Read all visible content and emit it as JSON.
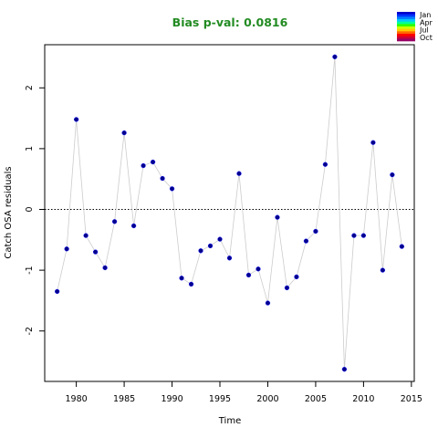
{
  "chart_data": {
    "type": "scatter",
    "title": "Bias p-val: 0.0816",
    "title_color": "#228B22",
    "xlabel": "Time",
    "ylabel": "Catch OSA residuals",
    "xlim": [
      1976.7,
      2015.3
    ],
    "ylim": [
      -2.83,
      2.71
    ],
    "xticks": [
      1980,
      1985,
      1990,
      1995,
      2000,
      2005,
      2010,
      2015
    ],
    "yticks": [
      -2,
      -1,
      0,
      1,
      2
    ],
    "reference_line": 0,
    "point_color": "#00008B",
    "line_color": "#cccccc",
    "grid": false,
    "x": [
      1978,
      1979,
      1980,
      1981,
      1982,
      1983,
      1984,
      1985,
      1986,
      1987,
      1988,
      1989,
      1990,
      1991,
      1992,
      1993,
      1994,
      1995,
      1996,
      1997,
      1998,
      1999,
      2000,
      2001,
      2002,
      2003,
      2004,
      2005,
      2006,
      2007,
      2008,
      2009,
      2010,
      2011,
      2012,
      2013,
      2014
    ],
    "y": [
      -1.35,
      -0.65,
      1.48,
      -0.43,
      -0.7,
      -0.96,
      -0.2,
      1.26,
      -0.27,
      0.72,
      0.78,
      0.51,
      0.34,
      -1.13,
      -1.23,
      -0.68,
      -0.6,
      -0.49,
      -0.8,
      0.59,
      -1.08,
      -0.98,
      -1.54,
      -0.13,
      -1.29,
      -1.11,
      -0.52,
      -0.36,
      0.74,
      2.51,
      -2.63,
      -0.43,
      -0.43,
      1.1,
      -1.0,
      0.57,
      -0.61
    ]
  },
  "legend": {
    "placement": "top-right",
    "labels": [
      "Jan",
      "Apr",
      "Jul",
      "Oct"
    ],
    "colors": [
      "#0000cc",
      "#0033ff",
      "#0080ff",
      "#00c8ff",
      "#00ff99",
      "#33ff00",
      "#ccff00",
      "#ffcc00",
      "#ff6600",
      "#ff0000",
      "#cc0033",
      "#990066"
    ]
  }
}
